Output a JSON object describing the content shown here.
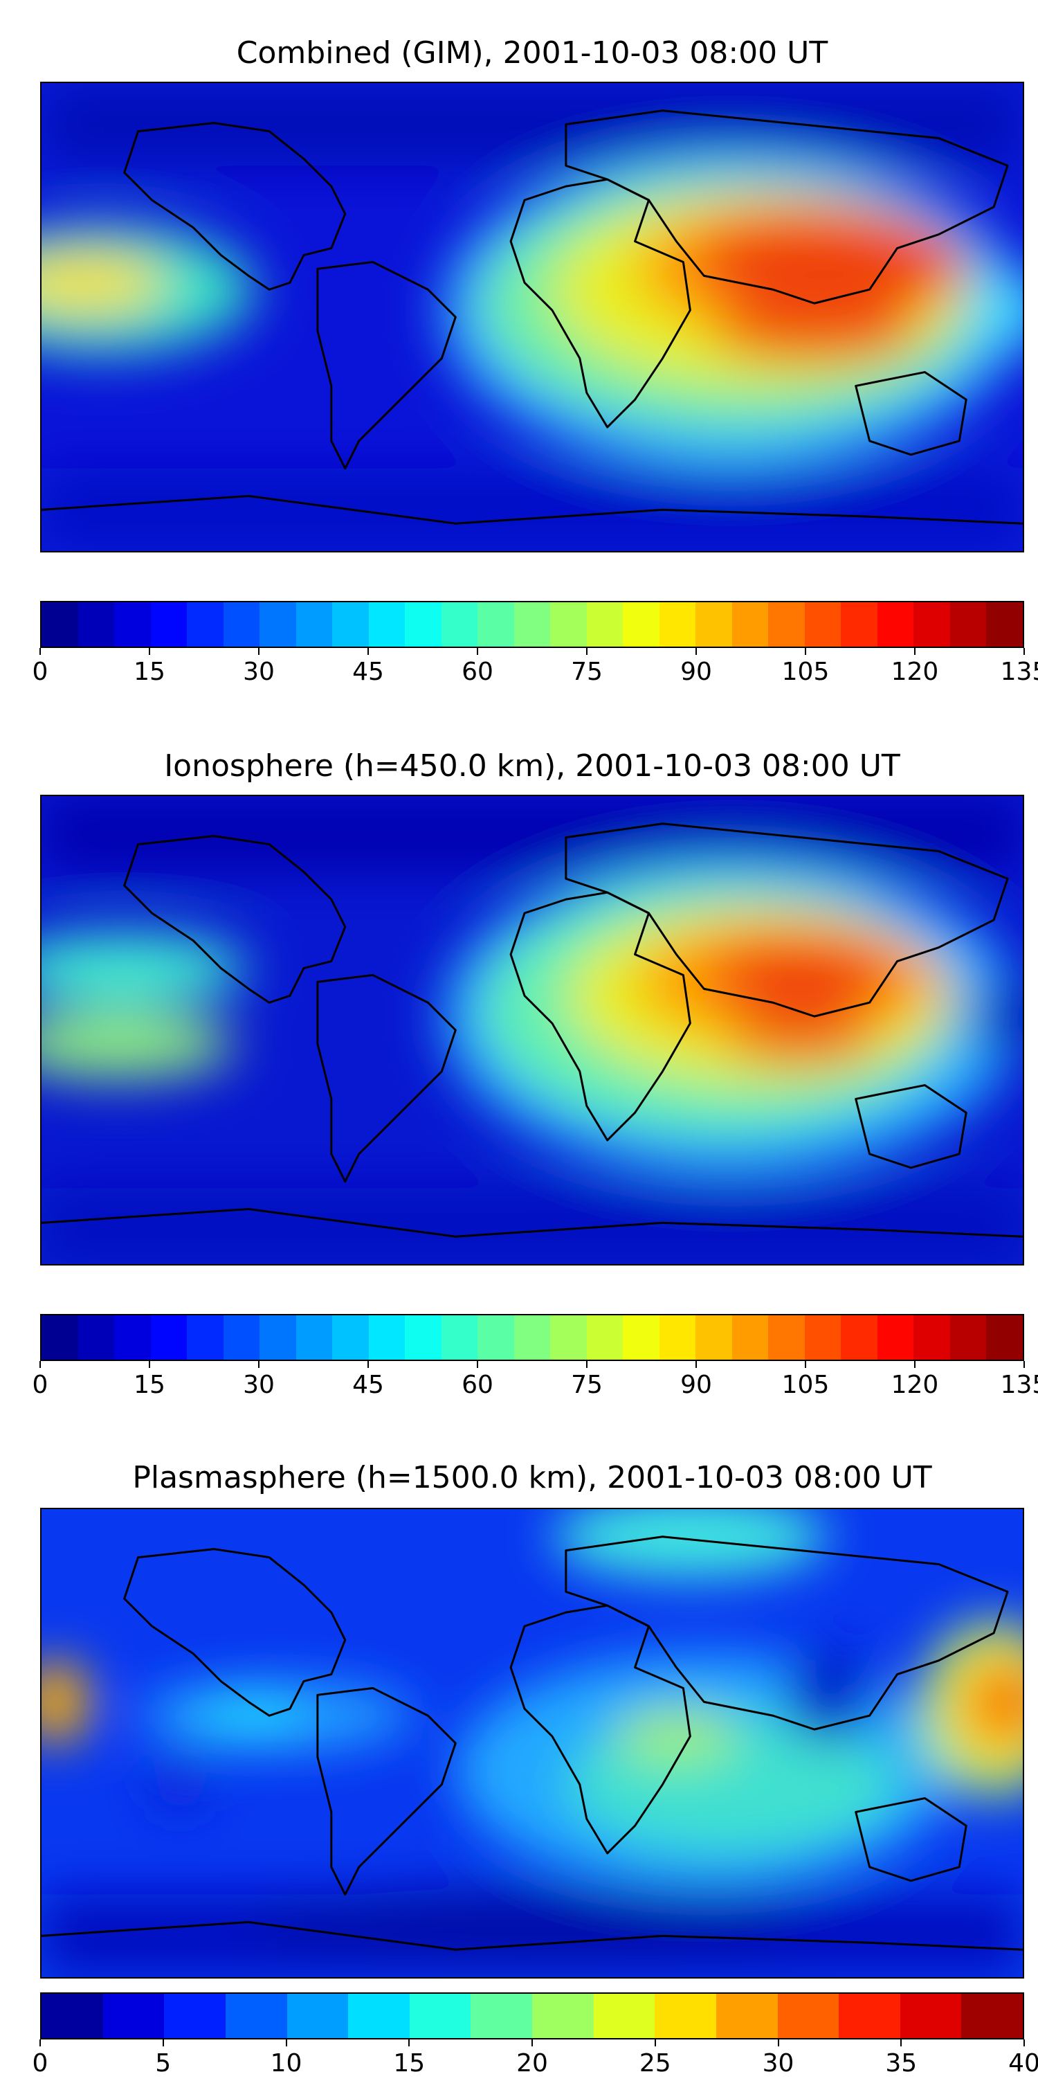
{
  "panels": [
    {
      "title": "Combined (GIM), 2001-10-03 08:00 UT",
      "colorbar": {
        "min": 0,
        "max": 135,
        "levels": 27,
        "ticks": [
          "0",
          "15",
          "30",
          "45",
          "60",
          "75",
          "90",
          "105",
          "120",
          "135"
        ]
      }
    },
    {
      "title": "Ionosphere  (h=450.0 km), 2001-10-03 08:00 UT",
      "colorbar": {
        "min": 0,
        "max": 135,
        "levels": 27,
        "ticks": [
          "0",
          "15",
          "30",
          "45",
          "60",
          "75",
          "90",
          "105",
          "120",
          "135"
        ]
      }
    },
    {
      "title": "Plasmasphere (h=1500.0 km), 2001-10-03 08:00 UT",
      "colorbar": {
        "min": 0,
        "max": 40,
        "levels": 16,
        "ticks": [
          "0",
          "5",
          "10",
          "15",
          "20",
          "25",
          "30",
          "35",
          "40"
        ]
      }
    }
  ],
  "colormap": "jet"
}
